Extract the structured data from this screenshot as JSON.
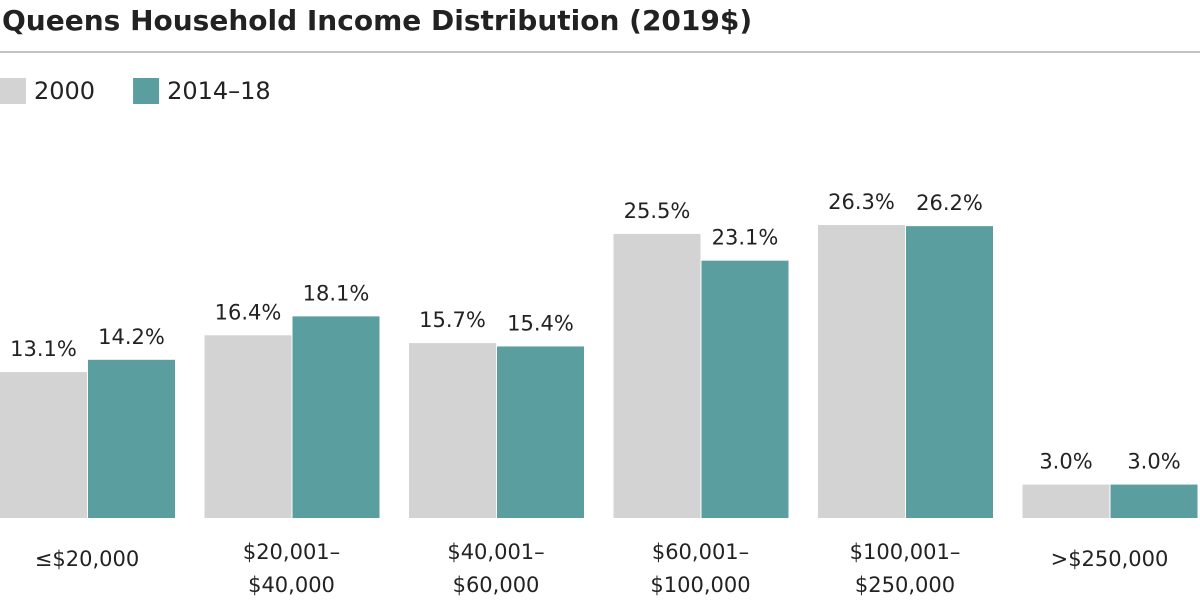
{
  "chart_data": {
    "type": "bar",
    "title": "Queens Household Income Distribution (2019$)",
    "categories": [
      [
        "≤$20,000"
      ],
      [
        "$20,001–",
        "$40,000"
      ],
      [
        "$40,001–",
        "$60,000"
      ],
      [
        "$60,001–",
        "$100,000"
      ],
      [
        "$100,001–",
        "$250,000"
      ],
      [
        ">$250,000"
      ]
    ],
    "series": [
      {
        "name": "2000",
        "color": "#d3d3d3",
        "values": [
          13.1,
          16.4,
          15.7,
          25.5,
          26.3,
          3.0
        ],
        "value_labels": [
          "13.1%",
          "16.4%",
          "15.7%",
          "25.5%",
          "26.3%",
          "3.0%"
        ]
      },
      {
        "name": "2014–18",
        "color": "#5a9ea0",
        "values": [
          14.2,
          18.1,
          15.4,
          23.1,
          26.2,
          3.0
        ],
        "value_labels": [
          "14.2%",
          "18.1%",
          "15.4%",
          "23.1%",
          "26.2%",
          "3.0%"
        ]
      }
    ]
  }
}
